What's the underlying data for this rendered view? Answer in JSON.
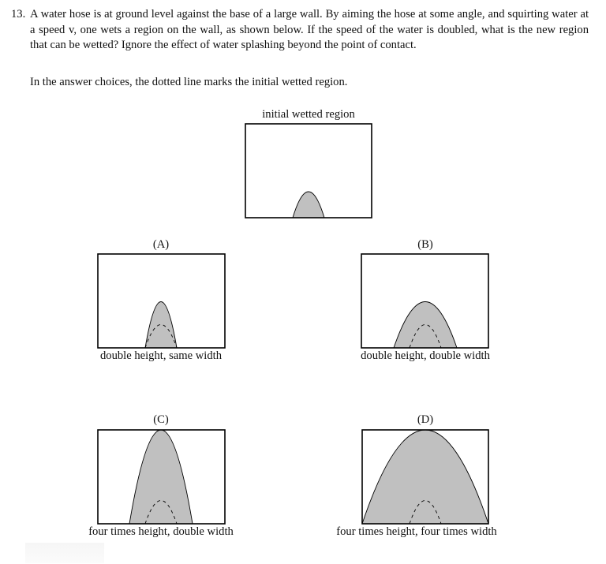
{
  "problem": {
    "number": "13.",
    "text": "A water hose is at ground level against the base of a large wall. By aiming the hose at some angle, and squirting water at a speed v, one wets a region on the wall, as shown below. If the speed of the water is doubled, what is the new region that can be wetted? Ignore the effect of water splashing beyond the point of contact.",
    "note": "In the answer choices, the dotted line marks the initial wetted region."
  },
  "initial": {
    "label": "initial wetted region"
  },
  "choices": [
    {
      "letter": "(A)",
      "caption": "double height, same width"
    },
    {
      "letter": "(B)",
      "caption": "double height, double width"
    },
    {
      "letter": "(C)",
      "caption": "four times height, double width"
    },
    {
      "letter": "(D)",
      "caption": "four times height, four times width"
    }
  ]
}
